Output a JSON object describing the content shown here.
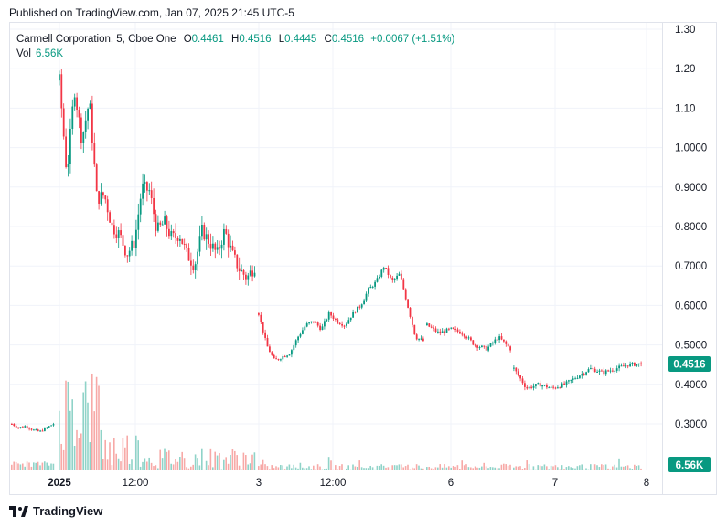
{
  "header": {
    "published": "Published on TradingView.com, Jan 07, 2025 21:45 UTC-5"
  },
  "legend": {
    "symbol": "Carmell Corporation, 5, Cboe One",
    "open_label": "O",
    "open": "0.4461",
    "high_label": "H",
    "high": "0.4516",
    "low_label": "L",
    "low": "0.4445",
    "close_label": "C",
    "close": "0.4516",
    "change": "+0.0067 (+1.51%)",
    "vol_label": "Vol",
    "vol": "6.56K"
  },
  "price_badge": "0.4516",
  "volume_badge": "6.56K",
  "footer": {
    "brand": "TradingView"
  },
  "colors": {
    "up": "#089981",
    "down": "#f23645",
    "up_volume": "#8fd3c8",
    "down_volume": "#f7a9a7"
  },
  "chart_data": {
    "type": "candlestick",
    "y_axis": {
      "ticks": [
        "1.30",
        "1.20",
        "1.10",
        "1.0000",
        "0.9000",
        "0.8000",
        "0.7000",
        "0.6000",
        "0.5000",
        "0.4000",
        "0.3000"
      ],
      "ylim": [
        0.28,
        1.32
      ]
    },
    "x_axis": {
      "ticks": [
        "2025",
        "12:00",
        "3",
        "12:00",
        "6",
        "7",
        "8"
      ]
    },
    "last_price": 0.4516,
    "last_volume": "6.56K",
    "segments": [
      {
        "session": "Jan 2 (pre)",
        "path": [
          0.3,
          0.29,
          0.295,
          0.285,
          0.28,
          0.29,
          0.3
        ]
      },
      {
        "session": "Jan 2",
        "path": [
          1.17,
          0.93,
          1.15,
          1.02,
          1.12,
          0.87,
          0.88,
          0.8,
          0.78,
          0.73,
          0.76,
          0.9,
          0.89,
          0.79,
          0.81,
          0.77,
          0.78,
          0.73,
          0.7,
          0.79,
          0.76,
          0.73,
          0.79,
          0.73,
          0.69,
          0.67,
          0.7
        ]
      },
      {
        "session": "Jan 3",
        "path": [
          0.58,
          0.5,
          0.46,
          0.47,
          0.48,
          0.52,
          0.55,
          0.56,
          0.54,
          0.58,
          0.56,
          0.55,
          0.58,
          0.6,
          0.64,
          0.66,
          0.7,
          0.66,
          0.68,
          0.6,
          0.52,
          0.51
        ]
      },
      {
        "session": "Jan 6",
        "path": [
          0.55,
          0.53,
          0.54,
          0.53,
          0.5,
          0.49,
          0.52,
          0.49
        ]
      },
      {
        "session": "Jan 7",
        "path": [
          0.44,
          0.39,
          0.4,
          0.39,
          0.4,
          0.42,
          0.44,
          0.43,
          0.44,
          0.45,
          0.4516
        ]
      }
    ]
  }
}
